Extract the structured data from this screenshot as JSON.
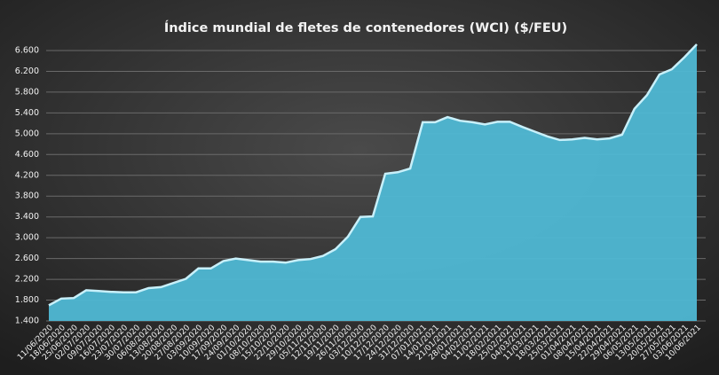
{
  "chart_data": {
    "type": "area",
    "title": "Índice mundial de fletes de contenedores (WCI) ($/FEU)",
    "categories": [
      "11/06/2020",
      "18/06/2020",
      "25/06/2020",
      "02/07/2020",
      "09/07/2020",
      "16/07/2020",
      "23/07/2020",
      "30/07/2020",
      "06/08/2020",
      "13/08/2020",
      "20/08/2020",
      "27/08/2020",
      "03/09/2020",
      "10/09/2020",
      "17/09/2020",
      "24/09/2020",
      "01/10/2020",
      "08/10/2020",
      "15/10/2020",
      "22/10/2020",
      "29/10/2020",
      "05/11/2020",
      "12/11/2020",
      "19/11/2020",
      "26/11/2020",
      "03/12/2020",
      "10/12/2020",
      "17/12/2020",
      "24/12/2020",
      "31/12/2020",
      "07/01/2021",
      "14/01/2021",
      "21/01/2021",
      "28/01/2021",
      "04/02/2021",
      "11/02/2021",
      "18/02/2021",
      "25/02/2021",
      "04/03/2021",
      "11/03/2021",
      "18/03/2021",
      "25/03/2021",
      "01/04/2021",
      "08/04/2021",
      "15/04/2021",
      "22/04/2021",
      "29/04/2021",
      "06/05/2021",
      "13/05/2021",
      "20/05/2021",
      "27/05/2021",
      "03/06/2021",
      "10/06/2021"
    ],
    "values": [
      1700,
      1830,
      1840,
      1990,
      1975,
      1960,
      1950,
      1950,
      2030,
      2050,
      2130,
      2210,
      2410,
      2410,
      2550,
      2600,
      2570,
      2540,
      2540,
      2520,
      2570,
      2590,
      2650,
      2780,
      3020,
      3400,
      3410,
      4230,
      4260,
      4330,
      5220,
      5220,
      5320,
      5250,
      5220,
      5180,
      5230,
      5230,
      5130,
      5040,
      4950,
      4880,
      4890,
      4920,
      4890,
      4910,
      4980,
      5480,
      5740,
      6140,
      6240,
      6470,
      6720
    ],
    "color": "#4fb8d4",
    "ylim": [
      1400,
      6800
    ],
    "yticks": [
      {
        "value": 1400,
        "label": "1.400"
      },
      {
        "value": 1800,
        "label": "1.800"
      },
      {
        "value": 2200,
        "label": "2.200"
      },
      {
        "value": 2600,
        "label": "2.600"
      },
      {
        "value": 3000,
        "label": "3.000"
      },
      {
        "value": 3400,
        "label": "3.400"
      },
      {
        "value": 3800,
        "label": "3.800"
      },
      {
        "value": 4200,
        "label": "4.200"
      },
      {
        "value": 4600,
        "label": "4.600"
      },
      {
        "value": 5000,
        "label": "5.000"
      },
      {
        "value": 5400,
        "label": "5.400"
      },
      {
        "value": 5800,
        "label": "5.800"
      },
      {
        "value": 6200,
        "label": "6.200"
      },
      {
        "value": 6600,
        "label": "6.600"
      }
    ],
    "grid": true
  }
}
